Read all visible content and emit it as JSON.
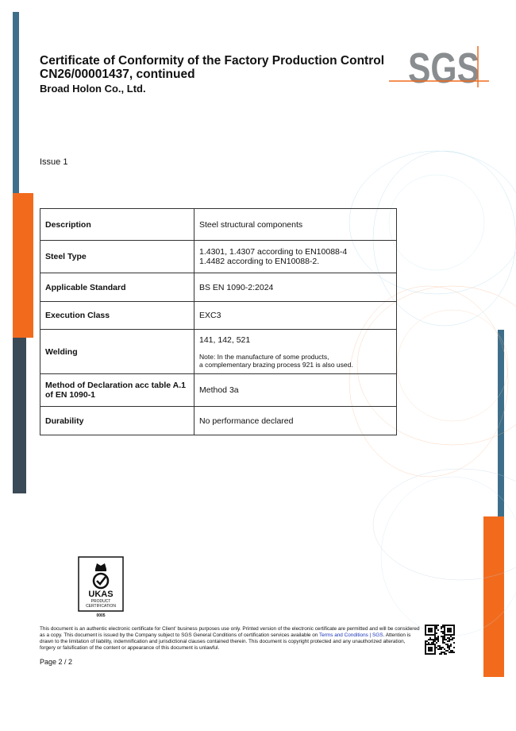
{
  "header": {
    "title_line1": "Certificate of Conformity of the Factory Production Control",
    "title_line2": "CN26/00001437, continued",
    "company": "Broad Holon Co., Ltd.",
    "logo_text": "SGS"
  },
  "issue": "Issue 1",
  "table": [
    {
      "key": "Description",
      "value": "Steel structural components"
    },
    {
      "key": "Steel Type",
      "value_lines": [
        "1.4301, 1.4307 according to EN10088-4",
        "1.4482 according to EN10088-2."
      ]
    },
    {
      "key": "Applicable Standard",
      "value": "BS EN 1090-2:2024"
    },
    {
      "key": "Execution Class",
      "value": "EXC3"
    },
    {
      "key": "Welding",
      "value": "141, 142, 521",
      "note_lines": [
        "Note: In the manufacture of some products,",
        "a complementary brazing process 921 is also used."
      ]
    },
    {
      "key": "Method of Declaration acc table A.1 of EN 1090-1",
      "value": "Method 3a"
    },
    {
      "key": "Durability",
      "value": "No performance declared"
    }
  ],
  "ukas": {
    "line1": "UKAS",
    "line2": "PRODUCT",
    "line3": "CERTIFICATION",
    "number": "0005"
  },
  "footer": {
    "text1": "This document is an authentic electronic certificate for Client' business purposes use only. Printed version of the electronic certificate are permitted and will be considered as a copy. This document is issued by the Company subject to SGS General Conditions of certification services available on ",
    "link": "Terms and Conditions | SGS",
    "text2": ". Attention is drawn to the limitation of liability, indemnification and jurisdictional clauses contained therein. This document is copyright protected and any unauthorized alteration, forgery or falsification of the content or appearance of this document is unlawful.",
    "page": "Page 2 / 2"
  },
  "colors": {
    "blue": "#3e6f8a",
    "orange": "#f26b1d",
    "dark": "#3a4a57"
  }
}
